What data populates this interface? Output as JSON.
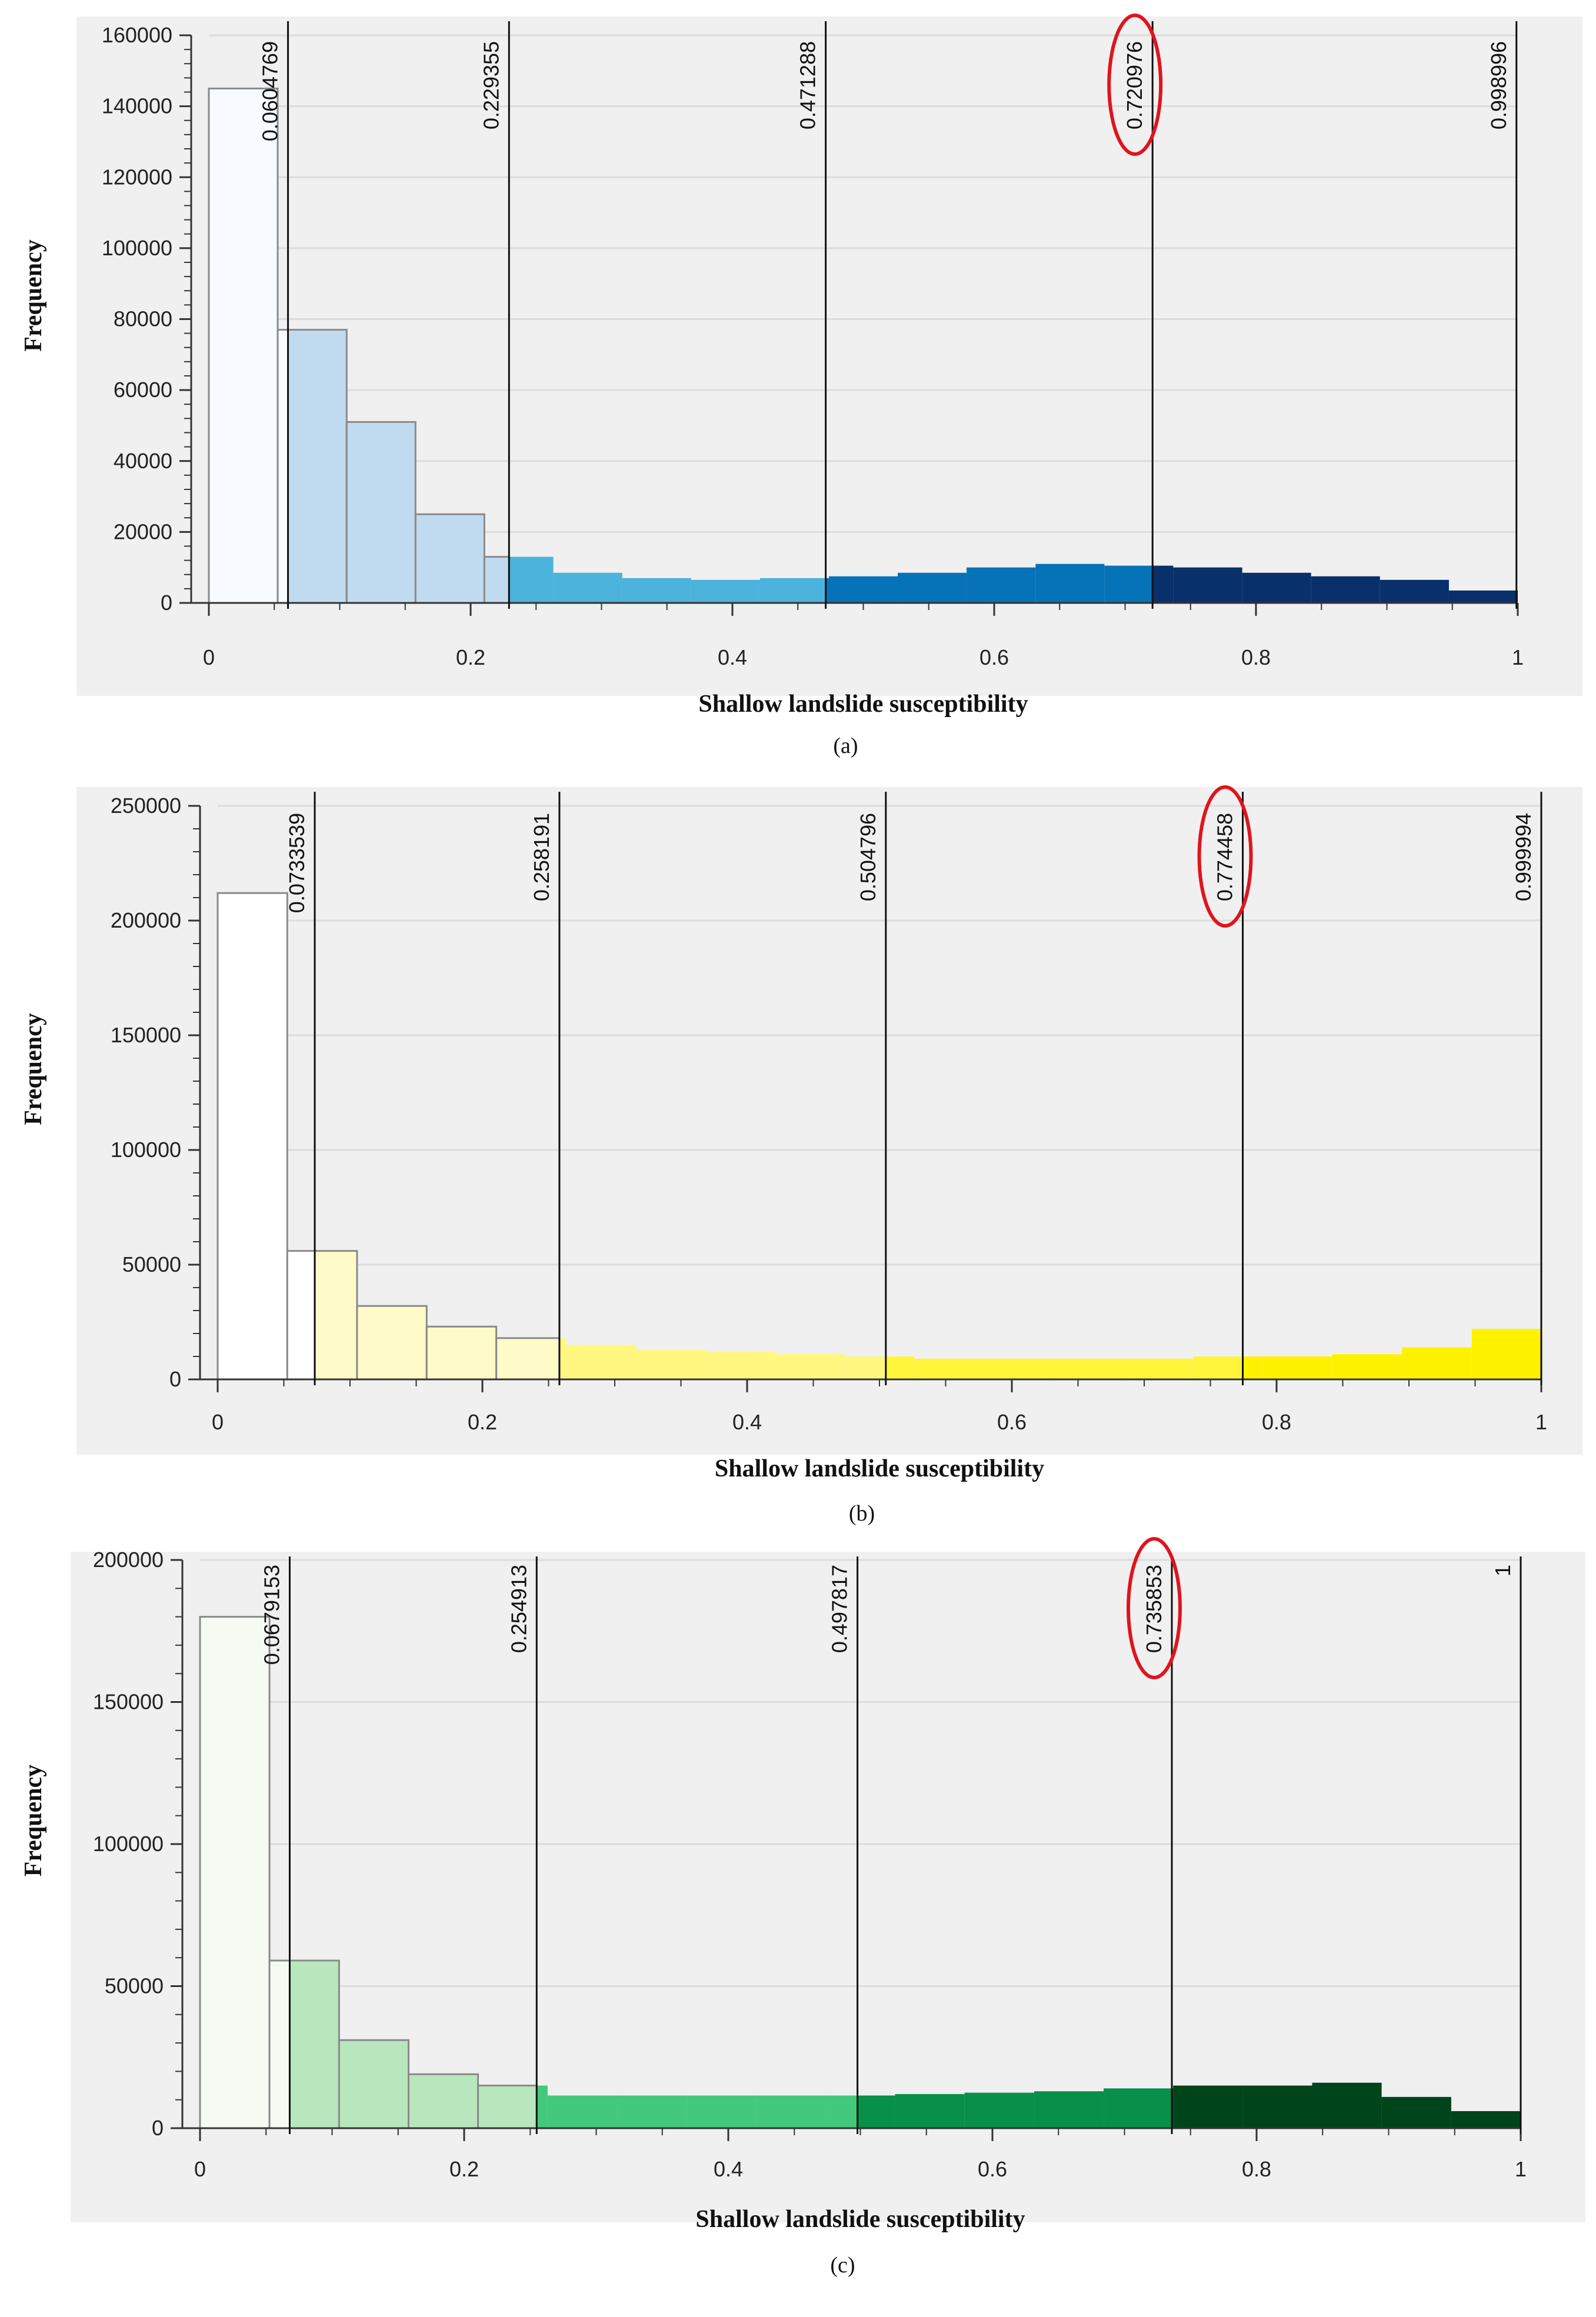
{
  "chart_data": [
    {
      "type": "bar",
      "panel_label": "(a)",
      "xlabel": "Shallow landslide susceptibility",
      "ylabel": "Frequency",
      "xlim": [
        0,
        1
      ],
      "ylim": [
        0,
        160000
      ],
      "xticks": [
        "0",
        "0.2",
        "0.4",
        "0.6",
        "0.8",
        "1"
      ],
      "yticks": [
        "0",
        "20000",
        "40000",
        "60000",
        "80000",
        "100000",
        "120000",
        "140000",
        "160000"
      ],
      "bin_edges": [
        0,
        0.0526,
        0.1053,
        0.1579,
        0.2105,
        0.2632,
        0.3158,
        0.3684,
        0.4211,
        0.4737,
        0.5263,
        0.5789,
        0.6316,
        0.6842,
        0.7368,
        0.7895,
        0.8421,
        0.8947,
        0.9474,
        1.0
      ],
      "frequencies": [
        145000,
        77000,
        51000,
        25000,
        13000,
        8500,
        7000,
        6500,
        7000,
        7500,
        8500,
        10000,
        11000,
        10500,
        10000,
        8500,
        7500,
        6500,
        3500
      ],
      "class_breaks": [
        "0.0604769",
        "0.229355",
        "0.471288",
        "0.720976",
        "0.998996"
      ],
      "highlighted_break": "0.720976",
      "class_colors": [
        "#f7fbff",
        "#c0dbf0",
        "#4bb3dc",
        "#0673b9",
        "#08306b"
      ]
    },
    {
      "type": "bar",
      "panel_label": "(b)",
      "xlabel": "Shallow landslide susceptibility",
      "ylabel": "Frequency",
      "xlim": [
        0,
        1
      ],
      "ylim": [
        0,
        250000
      ],
      "xticks": [
        "0",
        "0.2",
        "0.4",
        "0.6",
        "0.8",
        "1"
      ],
      "yticks": [
        "0",
        "50000",
        "100000",
        "150000",
        "200000",
        "250000"
      ],
      "bin_edges": [
        0,
        0.0526,
        0.1053,
        0.1579,
        0.2105,
        0.2632,
        0.3158,
        0.3684,
        0.4211,
        0.4737,
        0.5263,
        0.5789,
        0.6316,
        0.6842,
        0.7368,
        0.7895,
        0.8421,
        0.8947,
        0.9474,
        1.0
      ],
      "frequencies": [
        212000,
        56000,
        32000,
        23000,
        18000,
        15000,
        13000,
        12000,
        11000,
        10000,
        9000,
        9000,
        9000,
        9000,
        10000,
        10000,
        11000,
        14000,
        22000
      ],
      "class_breaks": [
        "0.0733539",
        "0.258191",
        "0.504796",
        "0.774458",
        "0.999994"
      ],
      "highlighted_break": "0.774458",
      "class_colors": [
        "#ffffff",
        "#fffbc8",
        "#fff780",
        "#fff53a",
        "#fff200"
      ]
    },
    {
      "type": "bar",
      "panel_label": "(c)",
      "xlabel": "Shallow landslide susceptibility",
      "ylabel": "Frequency",
      "xlim": [
        0,
        1
      ],
      "ylim": [
        0,
        200000
      ],
      "xticks": [
        "0",
        "0.2",
        "0.4",
        "0.6",
        "0.8",
        "1"
      ],
      "yticks": [
        "0",
        "50000",
        "100000",
        "150000",
        "200000"
      ],
      "bin_edges": [
        0,
        0.0526,
        0.1053,
        0.1579,
        0.2105,
        0.2632,
        0.3158,
        0.3684,
        0.4211,
        0.4737,
        0.5263,
        0.5789,
        0.6316,
        0.6842,
        0.7368,
        0.7895,
        0.8421,
        0.8947,
        0.9474,
        1.0
      ],
      "frequencies": [
        180000,
        59000,
        31000,
        19000,
        15000,
        11500,
        11500,
        11500,
        11500,
        11500,
        12000,
        12500,
        13000,
        14000,
        15000,
        15000,
        16000,
        11000,
        6000
      ],
      "class_breaks": [
        "0.0679153",
        "0.254913",
        "0.497817",
        "0.735853",
        "1"
      ],
      "highlighted_break": "0.735853",
      "class_colors": [
        "#f5fbf3",
        "#b8e6bd",
        "#43c97c",
        "#08904a",
        "#00441b"
      ]
    }
  ]
}
